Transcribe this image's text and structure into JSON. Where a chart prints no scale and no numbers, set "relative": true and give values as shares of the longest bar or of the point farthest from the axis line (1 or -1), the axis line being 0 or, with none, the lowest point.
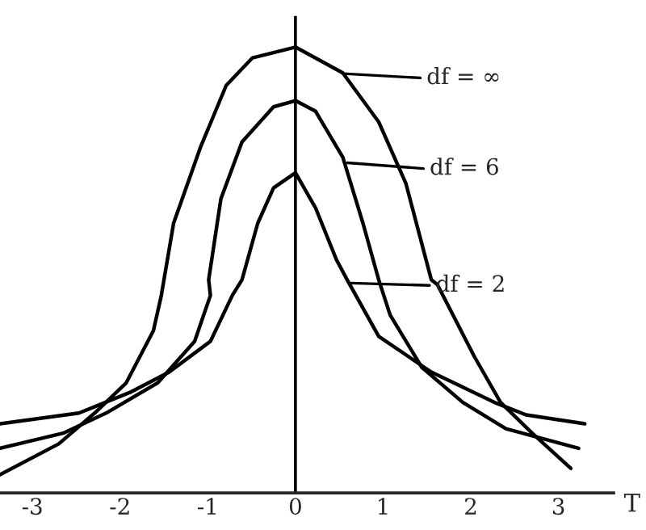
{
  "chart_data": {
    "type": "line",
    "relative": true,
    "xlabel": "T",
    "xlim": [
      -3.37,
      3.63
    ],
    "xticks": [
      -3,
      -2,
      -1,
      0,
      1,
      2,
      3
    ],
    "ref_lines": [
      {
        "axis": "x",
        "value": 0
      }
    ],
    "legend": false,
    "marker": "none",
    "line_style": "solid",
    "series": [
      {
        "color": "#000000",
        "x": [
          -3.37,
          -2.7,
          -2.29,
          -1.93,
          -1.62,
          -1.53,
          -1.39,
          -1.08,
          -0.79,
          -0.49,
          0,
          0.54,
          0.95,
          1.26,
          1.55,
          1.62,
          2.04,
          2.34,
          2.7,
          3.14
        ],
        "values": [
          0.041,
          0.11,
          0.179,
          0.247,
          0.364,
          0.443,
          0.605,
          0.777,
          0.914,
          0.976,
          1.0,
          0.942,
          0.832,
          0.694,
          0.478,
          0.467,
          0.306,
          0.203,
          0.134,
          0.055
        ]
      },
      {
        "color": "#000000",
        "x": [
          -3.37,
          -2.65,
          -2.16,
          -1.57,
          -1.15,
          -0.97,
          -0.99,
          -0.85,
          -0.61,
          -0.25,
          0,
          0.23,
          0.54,
          0.77,
          0.95,
          1.08,
          1.44,
          1.91,
          2.4,
          3.23
        ],
        "values": [
          0.1,
          0.134,
          0.179,
          0.247,
          0.34,
          0.443,
          0.478,
          0.66,
          0.787,
          0.866,
          0.88,
          0.856,
          0.753,
          0.605,
          0.478,
          0.399,
          0.282,
          0.203,
          0.144,
          0.1
        ]
      },
      {
        "color": "#000000",
        "x": [
          -3.37,
          -2.47,
          -1.87,
          -1.44,
          -0.97,
          -0.72,
          -0.61,
          -0.43,
          -0.25,
          0,
          0.23,
          0.47,
          0.59,
          0.95,
          1.55,
          2.27,
          2.63,
          3.3
        ],
        "values": [
          0.155,
          0.179,
          0.227,
          0.271,
          0.34,
          0.443,
          0.478,
          0.605,
          0.684,
          0.718,
          0.639,
          0.522,
          0.478,
          0.351,
          0.271,
          0.203,
          0.175,
          0.155
        ]
      }
    ],
    "annotations": [
      "df = ∞",
      "df = 6",
      "df = 2"
    ]
  }
}
